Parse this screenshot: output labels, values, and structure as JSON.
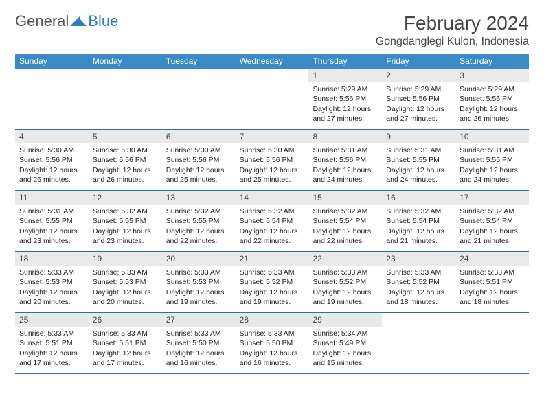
{
  "logo": {
    "text1": "General",
    "text2": "Blue",
    "tri_color": "#2f7ec2"
  },
  "header": {
    "title": "February 2024",
    "location": "Gongdanglegi Kulon, Indonesia"
  },
  "colors": {
    "header_bg": "#3a8ac6",
    "header_text": "#ffffff",
    "daynum_bg": "#e9e9e9",
    "row_border": "#2f6fa3",
    "text": "#222222",
    "title_text": "#444444"
  },
  "day_names": [
    "Sunday",
    "Monday",
    "Tuesday",
    "Wednesday",
    "Thursday",
    "Friday",
    "Saturday"
  ],
  "weeks": [
    [
      {
        "day": "",
        "sunrise": "",
        "sunset": "",
        "daylight": ""
      },
      {
        "day": "",
        "sunrise": "",
        "sunset": "",
        "daylight": ""
      },
      {
        "day": "",
        "sunrise": "",
        "sunset": "",
        "daylight": ""
      },
      {
        "day": "",
        "sunrise": "",
        "sunset": "",
        "daylight": ""
      },
      {
        "day": "1",
        "sunrise": "Sunrise: 5:29 AM",
        "sunset": "Sunset: 5:56 PM",
        "daylight": "Daylight: 12 hours and 27 minutes."
      },
      {
        "day": "2",
        "sunrise": "Sunrise: 5:29 AM",
        "sunset": "Sunset: 5:56 PM",
        "daylight": "Daylight: 12 hours and 27 minutes."
      },
      {
        "day": "3",
        "sunrise": "Sunrise: 5:29 AM",
        "sunset": "Sunset: 5:56 PM",
        "daylight": "Daylight: 12 hours and 26 minutes."
      }
    ],
    [
      {
        "day": "4",
        "sunrise": "Sunrise: 5:30 AM",
        "sunset": "Sunset: 5:56 PM",
        "daylight": "Daylight: 12 hours and 26 minutes."
      },
      {
        "day": "5",
        "sunrise": "Sunrise: 5:30 AM",
        "sunset": "Sunset: 5:56 PM",
        "daylight": "Daylight: 12 hours and 26 minutes."
      },
      {
        "day": "6",
        "sunrise": "Sunrise: 5:30 AM",
        "sunset": "Sunset: 5:56 PM",
        "daylight": "Daylight: 12 hours and 25 minutes."
      },
      {
        "day": "7",
        "sunrise": "Sunrise: 5:30 AM",
        "sunset": "Sunset: 5:56 PM",
        "daylight": "Daylight: 12 hours and 25 minutes."
      },
      {
        "day": "8",
        "sunrise": "Sunrise: 5:31 AM",
        "sunset": "Sunset: 5:56 PM",
        "daylight": "Daylight: 12 hours and 24 minutes."
      },
      {
        "day": "9",
        "sunrise": "Sunrise: 5:31 AM",
        "sunset": "Sunset: 5:55 PM",
        "daylight": "Daylight: 12 hours and 24 minutes."
      },
      {
        "day": "10",
        "sunrise": "Sunrise: 5:31 AM",
        "sunset": "Sunset: 5:55 PM",
        "daylight": "Daylight: 12 hours and 24 minutes."
      }
    ],
    [
      {
        "day": "11",
        "sunrise": "Sunrise: 5:31 AM",
        "sunset": "Sunset: 5:55 PM",
        "daylight": "Daylight: 12 hours and 23 minutes."
      },
      {
        "day": "12",
        "sunrise": "Sunrise: 5:32 AM",
        "sunset": "Sunset: 5:55 PM",
        "daylight": "Daylight: 12 hours and 23 minutes."
      },
      {
        "day": "13",
        "sunrise": "Sunrise: 5:32 AM",
        "sunset": "Sunset: 5:55 PM",
        "daylight": "Daylight: 12 hours and 22 minutes."
      },
      {
        "day": "14",
        "sunrise": "Sunrise: 5:32 AM",
        "sunset": "Sunset: 5:54 PM",
        "daylight": "Daylight: 12 hours and 22 minutes."
      },
      {
        "day": "15",
        "sunrise": "Sunrise: 5:32 AM",
        "sunset": "Sunset: 5:54 PM",
        "daylight": "Daylight: 12 hours and 22 minutes."
      },
      {
        "day": "16",
        "sunrise": "Sunrise: 5:32 AM",
        "sunset": "Sunset: 5:54 PM",
        "daylight": "Daylight: 12 hours and 21 minutes."
      },
      {
        "day": "17",
        "sunrise": "Sunrise: 5:32 AM",
        "sunset": "Sunset: 5:54 PM",
        "daylight": "Daylight: 12 hours and 21 minutes."
      }
    ],
    [
      {
        "day": "18",
        "sunrise": "Sunrise: 5:33 AM",
        "sunset": "Sunset: 5:53 PM",
        "daylight": "Daylight: 12 hours and 20 minutes."
      },
      {
        "day": "19",
        "sunrise": "Sunrise: 5:33 AM",
        "sunset": "Sunset: 5:53 PM",
        "daylight": "Daylight: 12 hours and 20 minutes."
      },
      {
        "day": "20",
        "sunrise": "Sunrise: 5:33 AM",
        "sunset": "Sunset: 5:53 PM",
        "daylight": "Daylight: 12 hours and 19 minutes."
      },
      {
        "day": "21",
        "sunrise": "Sunrise: 5:33 AM",
        "sunset": "Sunset: 5:52 PM",
        "daylight": "Daylight: 12 hours and 19 minutes."
      },
      {
        "day": "22",
        "sunrise": "Sunrise: 5:33 AM",
        "sunset": "Sunset: 5:52 PM",
        "daylight": "Daylight: 12 hours and 19 minutes."
      },
      {
        "day": "23",
        "sunrise": "Sunrise: 5:33 AM",
        "sunset": "Sunset: 5:52 PM",
        "daylight": "Daylight: 12 hours and 18 minutes."
      },
      {
        "day": "24",
        "sunrise": "Sunrise: 5:33 AM",
        "sunset": "Sunset: 5:51 PM",
        "daylight": "Daylight: 12 hours and 18 minutes."
      }
    ],
    [
      {
        "day": "25",
        "sunrise": "Sunrise: 5:33 AM",
        "sunset": "Sunset: 5:51 PM",
        "daylight": "Daylight: 12 hours and 17 minutes."
      },
      {
        "day": "26",
        "sunrise": "Sunrise: 5:33 AM",
        "sunset": "Sunset: 5:51 PM",
        "daylight": "Daylight: 12 hours and 17 minutes."
      },
      {
        "day": "27",
        "sunrise": "Sunrise: 5:33 AM",
        "sunset": "Sunset: 5:50 PM",
        "daylight": "Daylight: 12 hours and 16 minutes."
      },
      {
        "day": "28",
        "sunrise": "Sunrise: 5:33 AM",
        "sunset": "Sunset: 5:50 PM",
        "daylight": "Daylight: 12 hours and 16 minutes."
      },
      {
        "day": "29",
        "sunrise": "Sunrise: 5:34 AM",
        "sunset": "Sunset: 5:49 PM",
        "daylight": "Daylight: 12 hours and 15 minutes."
      },
      {
        "day": "",
        "sunrise": "",
        "sunset": "",
        "daylight": ""
      },
      {
        "day": "",
        "sunrise": "",
        "sunset": "",
        "daylight": ""
      }
    ]
  ]
}
